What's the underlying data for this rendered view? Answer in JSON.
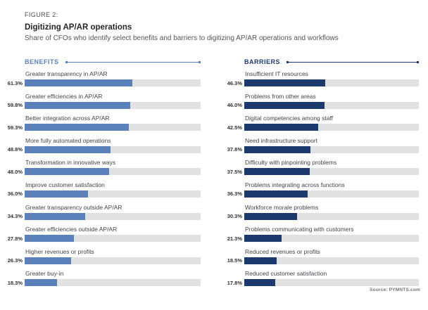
{
  "figure": {
    "label": "FIGURE 2:",
    "title": "Digitizing AP/AR operations",
    "subtitle": "Share of CFOs who identify select benefits and barriers to digitizing AP/AR operations and workflows",
    "source": "Source: PYMNTS.com"
  },
  "colors": {
    "benefits_bar": "#5b81bd",
    "barriers_bar": "#1b3a6d",
    "bar_track": "#e0e1e3"
  },
  "chart_data": {
    "type": "bar",
    "orientation": "horizontal",
    "unit": "percent",
    "xlim": [
      0,
      100
    ],
    "grid": false,
    "legend": false,
    "title": "Digitizing AP/AR operations",
    "subtitle": "Share of CFOs who identify select benefits and barriers to digitizing AP/AR operations and workflows",
    "panels": [
      {
        "heading": "BENEFITS",
        "color": "#5b81bd",
        "items": [
          {
            "label": "Greater transparency in AP/AR",
            "value": 61.3,
            "display": "61.3%"
          },
          {
            "label": "Greater efficiencies in AP/AR",
            "value": 59.8,
            "display": "59.8%"
          },
          {
            "label": "Better integration across AP/AR",
            "value": 59.3,
            "display": "59.3%"
          },
          {
            "label": "More fully automated operations",
            "value": 48.8,
            "display": "48.8%"
          },
          {
            "label": "Transformation in innovative ways",
            "value": 48.0,
            "display": "48.0%"
          },
          {
            "label": "Improve customer satisfaction",
            "value": 36.0,
            "display": "36.0%"
          },
          {
            "label": "Greater transparency outside AP/AR",
            "value": 34.3,
            "display": "34.3%"
          },
          {
            "label": "Greater efficiencies outside AP/AR",
            "value": 27.8,
            "display": "27.8%"
          },
          {
            "label": "Higher revenues or profits",
            "value": 26.3,
            "display": "26.3%"
          },
          {
            "label": "Greater buy-in",
            "value": 18.3,
            "display": "18.3%"
          }
        ]
      },
      {
        "heading": "BARRIERS",
        "color": "#1b3a6d",
        "items": [
          {
            "label": "Insufficient IT resources",
            "value": 46.3,
            "display": "46.3%"
          },
          {
            "label": "Problems from other areas",
            "value": 46.0,
            "display": "46.0%"
          },
          {
            "label": "Digital competencies among staff",
            "value": 42.5,
            "display": "42.5%"
          },
          {
            "label": "Need infrastructure support",
            "value": 37.8,
            "display": "37.8%"
          },
          {
            "label": "Difficulty with pinpointing problems",
            "value": 37.5,
            "display": "37.5%"
          },
          {
            "label": "Problems integrating across functions",
            "value": 36.3,
            "display": "36.3%"
          },
          {
            "label": "Workforce morale problems",
            "value": 30.3,
            "display": "30.3%"
          },
          {
            "label": "Problems communicating with customers",
            "value": 21.3,
            "display": "21.3%"
          },
          {
            "label": "Reduced revenues or profits",
            "value": 18.5,
            "display": "18.5%"
          },
          {
            "label": "Reduced customer satisfaction",
            "value": 17.8,
            "display": "17.8%"
          }
        ]
      }
    ]
  }
}
